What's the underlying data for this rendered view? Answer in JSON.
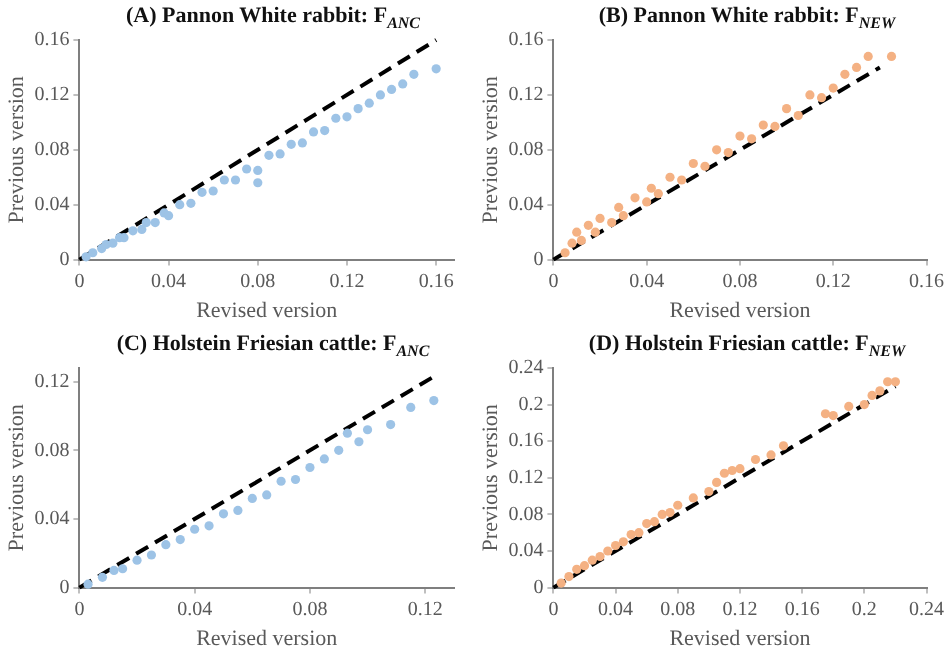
{
  "chart_data": [
    {
      "type": "scatter",
      "title": "(A) Pannon White rabbit: F$_{ANC}$",
      "xlabel": "Revised version",
      "ylabel": "Previous version",
      "xlim": [
        0,
        0.168
      ],
      "ylim": [
        0,
        0.16
      ],
      "xticks": [
        0,
        0.04,
        0.08,
        0.12,
        0.16
      ],
      "yticks": [
        0,
        0.04,
        0.08,
        0.12,
        0.16
      ],
      "grid": false,
      "legend": false,
      "marker": "circle",
      "series": [
        {
          "color": "#9dc3e6",
          "x": [
            0.003,
            0.006,
            0.01,
            0.012,
            0.015,
            0.018,
            0.02,
            0.024,
            0.028,
            0.03,
            0.034,
            0.038,
            0.04,
            0.045,
            0.05,
            0.055,
            0.06,
            0.065,
            0.07,
            0.075,
            0.08,
            0.08,
            0.085,
            0.09,
            0.095,
            0.1,
            0.105,
            0.11,
            0.115,
            0.12,
            0.125,
            0.13,
            0.135,
            0.14,
            0.145,
            0.15,
            0.16
          ],
          "values": [
            0.002,
            0.005,
            0.008,
            0.011,
            0.012,
            0.016,
            0.016,
            0.021,
            0.022,
            0.027,
            0.027,
            0.034,
            0.032,
            0.04,
            0.041,
            0.049,
            0.05,
            0.058,
            0.058,
            0.066,
            0.065,
            0.056,
            0.076,
            0.077,
            0.084,
            0.085,
            0.093,
            0.094,
            0.103,
            0.104,
            0.11,
            0.114,
            0.12,
            0.124,
            0.128,
            0.135,
            0.139
          ]
        },
        {
          "type": "line",
          "color": "#000000",
          "line_style": "dashed",
          "marker": "none",
          "x": [
            0,
            0.16
          ],
          "values": [
            0,
            0.16
          ]
        }
      ]
    },
    {
      "type": "scatter",
      "title": "(B) Pannon White rabbit: F$_{NEW}$",
      "xlabel": "Revised version",
      "ylabel": "Previous version",
      "xlim": [
        0,
        0.16
      ],
      "ylim": [
        0,
        0.16
      ],
      "xticks": [
        0,
        0.04,
        0.08,
        0.12,
        0.16
      ],
      "yticks": [
        0,
        0.04,
        0.08,
        0.12,
        0.16
      ],
      "grid": false,
      "legend": false,
      "marker": "circle",
      "series": [
        {
          "color": "#f4b183",
          "x": [
            0.005,
            0.008,
            0.01,
            0.012,
            0.015,
            0.018,
            0.02,
            0.025,
            0.028,
            0.03,
            0.035,
            0.04,
            0.042,
            0.045,
            0.05,
            0.055,
            0.06,
            0.065,
            0.07,
            0.075,
            0.08,
            0.085,
            0.09,
            0.095,
            0.1,
            0.105,
            0.11,
            0.115,
            0.12,
            0.125,
            0.13,
            0.135,
            0.145
          ],
          "values": [
            0.005,
            0.012,
            0.02,
            0.014,
            0.025,
            0.02,
            0.03,
            0.027,
            0.038,
            0.032,
            0.045,
            0.042,
            0.052,
            0.048,
            0.06,
            0.058,
            0.07,
            0.068,
            0.08,
            0.078,
            0.09,
            0.088,
            0.098,
            0.097,
            0.11,
            0.105,
            0.12,
            0.118,
            0.125,
            0.135,
            0.14,
            0.148,
            0.148
          ]
        },
        {
          "type": "line",
          "color": "#000000",
          "line_style": "dashed",
          "marker": "none",
          "x": [
            0,
            0.14
          ],
          "values": [
            0,
            0.14
          ]
        }
      ]
    },
    {
      "type": "scatter",
      "title": "(C) Holstein Friesian cattle: F$_{ANC}$",
      "xlabel": "Revised version",
      "ylabel": "Previous version",
      "xlim": [
        0,
        0.13
      ],
      "ylim": [
        0,
        0.128
      ],
      "xticks": [
        0,
        0.04,
        0.08,
        0.12
      ],
      "yticks": [
        0,
        0.04,
        0.08,
        0.12
      ],
      "grid": false,
      "legend": false,
      "marker": "circle",
      "series": [
        {
          "color": "#9dc3e6",
          "x": [
            0.003,
            0.008,
            0.012,
            0.015,
            0.02,
            0.025,
            0.03,
            0.035,
            0.04,
            0.045,
            0.05,
            0.055,
            0.06,
            0.065,
            0.07,
            0.075,
            0.08,
            0.085,
            0.09,
            0.093,
            0.097,
            0.1,
            0.108,
            0.115,
            0.123
          ],
          "values": [
            0.002,
            0.006,
            0.01,
            0.011,
            0.016,
            0.019,
            0.025,
            0.028,
            0.034,
            0.036,
            0.043,
            0.045,
            0.052,
            0.054,
            0.062,
            0.063,
            0.07,
            0.075,
            0.08,
            0.09,
            0.085,
            0.092,
            0.095,
            0.105,
            0.109
          ]
        },
        {
          "type": "line",
          "color": "#000000",
          "line_style": "dashed",
          "marker": "none",
          "x": [
            0,
            0.123
          ],
          "values": [
            0,
            0.123
          ]
        }
      ]
    },
    {
      "type": "scatter",
      "title": "(D) Holstein Friesian cattle: F$_{NEW}$",
      "xlabel": "Revised version",
      "ylabel": "Previous version",
      "xlim": [
        0,
        0.24
      ],
      "ylim": [
        0,
        0.24
      ],
      "xticks": [
        0,
        0.04,
        0.08,
        0.12,
        0.16,
        0.2,
        0.24
      ],
      "yticks": [
        0,
        0.04,
        0.08,
        0.12,
        0.16,
        0.2,
        0.24
      ],
      "grid": false,
      "legend": false,
      "marker": "circle",
      "series": [
        {
          "color": "#f4b183",
          "x": [
            0.005,
            0.01,
            0.015,
            0.02,
            0.025,
            0.03,
            0.035,
            0.04,
            0.045,
            0.05,
            0.055,
            0.06,
            0.065,
            0.07,
            0.075,
            0.08,
            0.09,
            0.1,
            0.105,
            0.11,
            0.115,
            0.12,
            0.13,
            0.14,
            0.148,
            0.175,
            0.18,
            0.19,
            0.2,
            0.205,
            0.21,
            0.215,
            0.22
          ],
          "values": [
            0.005,
            0.012,
            0.02,
            0.024,
            0.03,
            0.034,
            0.04,
            0.046,
            0.05,
            0.058,
            0.06,
            0.07,
            0.072,
            0.08,
            0.082,
            0.09,
            0.098,
            0.105,
            0.115,
            0.125,
            0.128,
            0.13,
            0.14,
            0.145,
            0.155,
            0.19,
            0.188,
            0.198,
            0.2,
            0.21,
            0.215,
            0.225,
            0.225
          ]
        },
        {
          "type": "line",
          "color": "#000000",
          "line_style": "dashed",
          "marker": "none",
          "x": [
            0,
            0.22
          ],
          "values": [
            0,
            0.22
          ]
        }
      ]
    }
  ]
}
